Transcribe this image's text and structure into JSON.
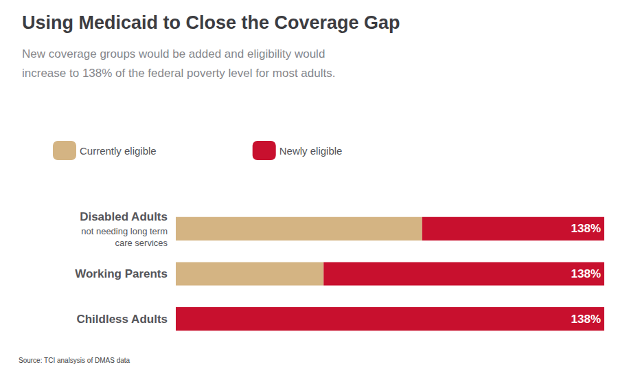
{
  "chart_data": {
    "type": "bar",
    "orientation": "horizontal",
    "stacked": true,
    "title": "Using Medicaid to Close the Coverage Gap",
    "subtitle": "New coverage groups would be added and eligibility would\nincrease to 138% of the federal poverty level for most adults.",
    "source": "Source: TCI analsysis of DMAS data",
    "categories": [
      "Disabled Adults",
      "Working Parents",
      "Childless Adults"
    ],
    "category_notes": [
      "not needing long term\ncare services",
      null,
      null
    ],
    "series": [
      {
        "name": "Currently eligible",
        "color": "#D4B483",
        "values": [
          0.575,
          0.345,
          0.0
        ]
      },
      {
        "name": "Newly eligible",
        "color": "#C8102E",
        "values": [
          0.425,
          0.655,
          1.0
        ],
        "annotation": "138%"
      }
    ],
    "xlim": [
      0,
      1.0
    ],
    "grid": false,
    "legend": "top",
    "tick_labels": "y"
  }
}
